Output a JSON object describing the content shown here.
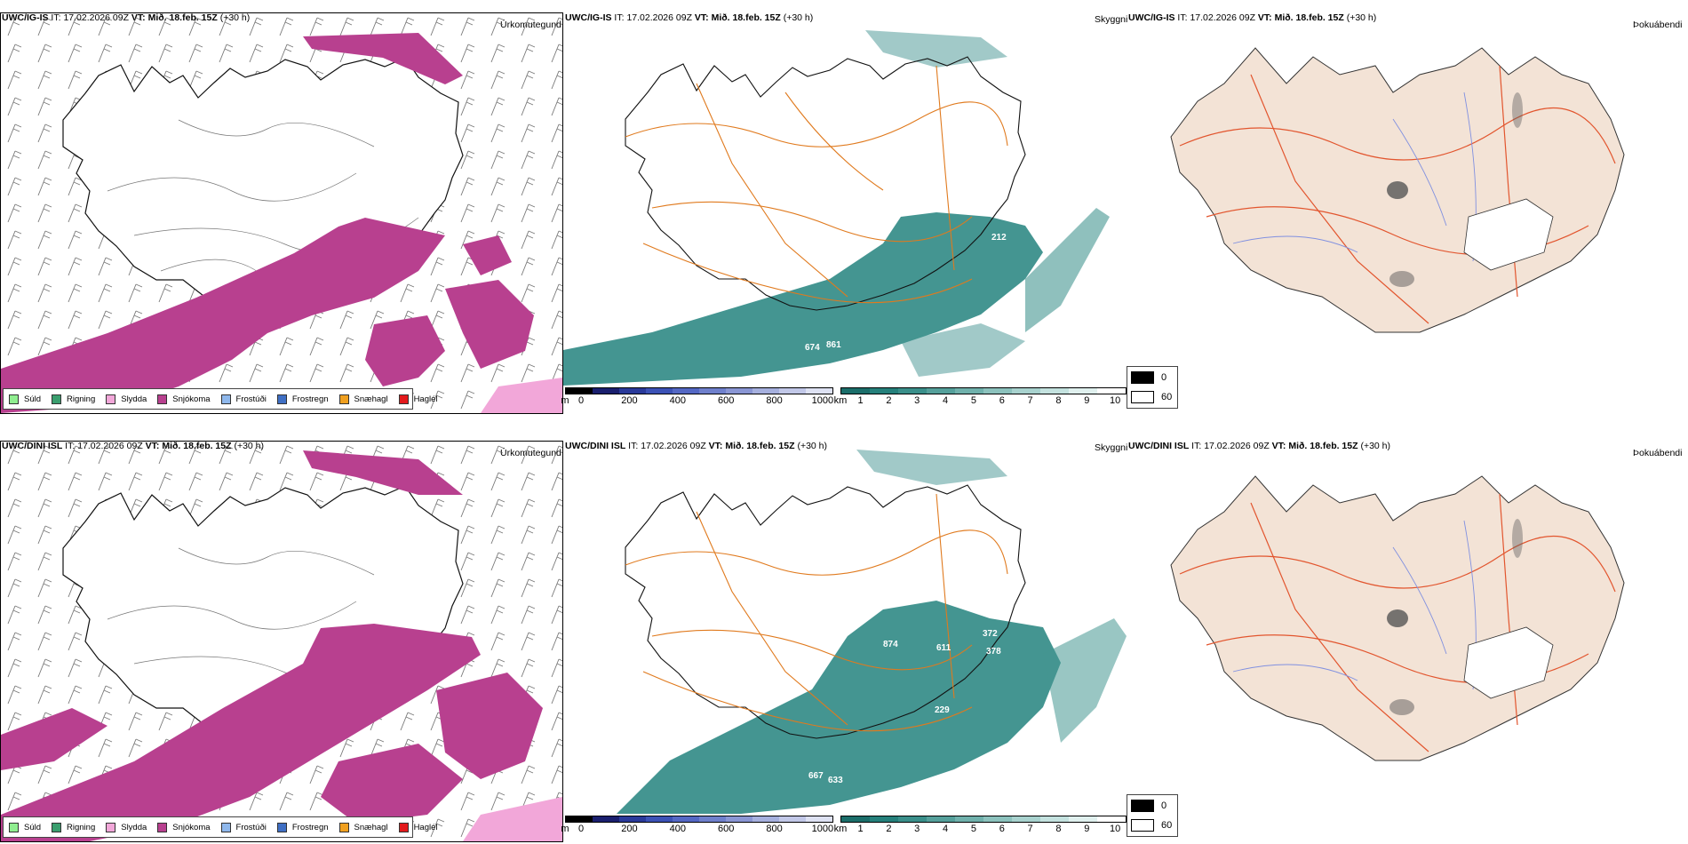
{
  "legend_items": [
    {
      "label": "Súld",
      "color": "#90ee90"
    },
    {
      "label": "Rigning",
      "color": "#3a9e6e"
    },
    {
      "label": "Slydda",
      "color": "#f2a7d9"
    },
    {
      "label": "Snjókoma",
      "color": "#b8408f"
    },
    {
      "label": "Frostúði",
      "color": "#8fb8ec"
    },
    {
      "label": "Frostregn",
      "color": "#3f6fc4"
    },
    {
      "label": "Snæhagl",
      "color": "#f0a020"
    },
    {
      "label": "Haglél",
      "color": "#e31a1c"
    }
  ],
  "rows": [
    {
      "model": "UWC/IG-IS",
      "it_label": "IT:",
      "it_value": "17.02.2026 09Z",
      "vt_label": "VT:",
      "vt_value": "Mið. 18.feb. 15Z",
      "lead": "(+30 h)",
      "labels": [
        "674",
        "861",
        "212"
      ]
    },
    {
      "model": "UWC/DINI ISL",
      "it_label": "IT:",
      "it_value": "17.02.2026 09Z",
      "vt_label": "VT:",
      "vt_value": "Mið. 18.feb. 15Z",
      "lead": "(+30 h)",
      "labels": [
        "874",
        "611",
        "372",
        "378",
        "229",
        "667",
        "633"
      ]
    }
  ],
  "titles": {
    "precip_type": "Úrkomutegund",
    "visibility": "Skyggni",
    "fog": "Þokuábendi"
  },
  "height_bar": {
    "unit": "m",
    "ticks": [
      "0",
      "200",
      "400",
      "600",
      "800",
      "1000"
    ],
    "colors": [
      "#000000",
      "#1a1f6e",
      "#2a3a9a",
      "#3c52b6",
      "#5468c4",
      "#6f80cc",
      "#8a96d4",
      "#a6b0de",
      "#c2c8e8",
      "#dee2f3"
    ]
  },
  "vis_bar": {
    "unit": "km",
    "ticks": [
      "1",
      "2",
      "3",
      "4",
      "5",
      "6",
      "7",
      "8",
      "9",
      "10"
    ],
    "colors": [
      "#1b6e6a",
      "#25807b",
      "#3a8f8a",
      "#55a09b",
      "#70b1ac",
      "#8cc2bd",
      "#a8d2ce",
      "#c4e2df",
      "#e0f0ee",
      "#ffffff"
    ]
  },
  "fog_legend": [
    {
      "label": "0",
      "color": "#000000"
    },
    {
      "label": "60",
      "color": "#ffffff"
    }
  ]
}
